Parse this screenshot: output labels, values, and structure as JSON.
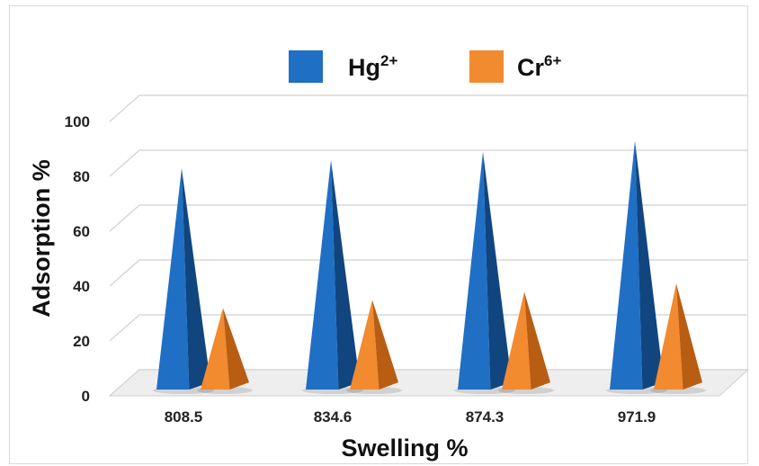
{
  "chart_data": {
    "type": "bar",
    "style": "3d-pyramid",
    "categories": [
      "808.5",
      "834.6",
      "874.3",
      "971.9"
    ],
    "series": [
      {
        "name": "Hg",
        "superscript": "2+",
        "color": "#1f6fc5",
        "dark": "#11457f",
        "values": [
          80,
          83,
          86,
          90
        ]
      },
      {
        "name": "Cr",
        "superscript": "6+",
        "color": "#f28a30",
        "dark": "#b85d12",
        "values": [
          29,
          32,
          35,
          38
        ]
      }
    ],
    "xlabel": "Swelling %",
    "ylabel": "Adsorption %",
    "ylim": [
      0,
      100
    ],
    "yticks": [
      0,
      20,
      40,
      60,
      80,
      100
    ],
    "grid": true,
    "legend": "top"
  }
}
